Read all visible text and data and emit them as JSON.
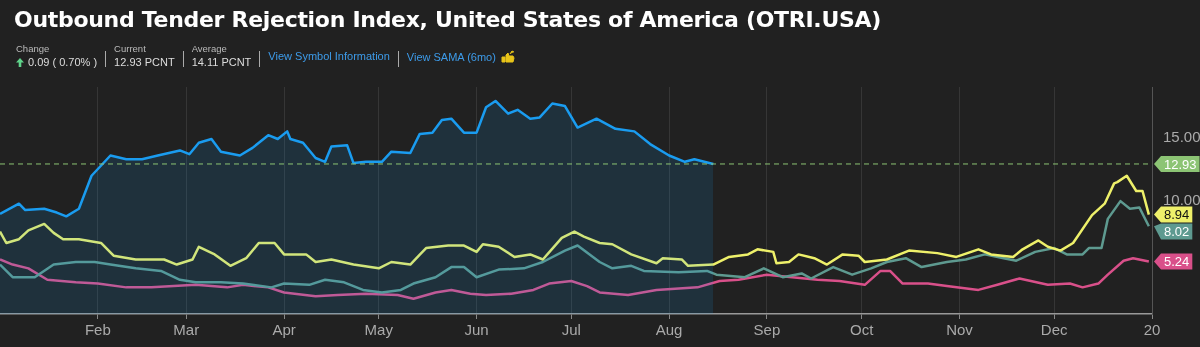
{
  "chart_data": {
    "type": "line",
    "title": "Outbound Tender Rejection Index, United States of America (OTRI.USA)",
    "annotations": [
      "Change",
      "0.09 ( 0.70% )",
      "Current",
      "12.93 PCNT",
      "Average",
      "14.11 PCNT",
      "View Symbol Information",
      "View SAMA (6mo)",
      {
        "text": "8.94",
        "x": "2019-12-31",
        "y": 8.94
      },
      {
        "text": "8.02",
        "x": "2019-12-31",
        "y": 8.02
      },
      {
        "text": "5.24",
        "x": "2019-12-31",
        "y": 5.24
      }
    ],
    "xlim": [
      "2019-01-01",
      "2020-01-01"
    ],
    "xticks": [
      {
        "value": "2019-02-01",
        "label": "Feb"
      },
      {
        "value": "2019-03-01",
        "label": "Mar"
      },
      {
        "value": "2019-04-01",
        "label": "Apr"
      },
      {
        "value": "2019-05-01",
        "label": "May"
      },
      {
        "value": "2019-06-01",
        "label": "Jun"
      },
      {
        "value": "2019-07-01",
        "label": "Jul"
      },
      {
        "value": "2019-08-01",
        "label": "Aug"
      },
      {
        "value": "2019-09-01",
        "label": "Sep"
      },
      {
        "value": "2019-10-01",
        "label": "Oct"
      },
      {
        "value": "2019-11-01",
        "label": "Nov"
      },
      {
        "value": "2019-12-01",
        "label": "Dec"
      },
      {
        "value": "2020-01-01",
        "label": "20"
      }
    ],
    "ylim": [
      1.1,
      19
    ],
    "yticks": [
      {
        "value": 10,
        "label": "10.00"
      },
      {
        "value": 15,
        "label": "15.00"
      }
    ],
    "grid": "x",
    "ref_lines": [
      {
        "axis": "y",
        "value": 12.93,
        "label": "12.93",
        "color": "#8cc474",
        "line_style": "dashed"
      }
    ],
    "series": [
      {
        "type": "area",
        "color": "#1a9cf0",
        "x": [
          "2019-01-01",
          "2019-01-07",
          "2019-01-09",
          "2019-01-15",
          "2019-01-19",
          "2019-01-22",
          "2019-01-26",
          "2019-01-30",
          "2019-02-05",
          "2019-02-10",
          "2019-02-15",
          "2019-02-20",
          "2019-02-27",
          "2019-03-02",
          "2019-03-05",
          "2019-03-09",
          "2019-03-12",
          "2019-03-18",
          "2019-03-22",
          "2019-03-27",
          "2019-03-30",
          "2019-04-02",
          "2019-04-03",
          "2019-04-07",
          "2019-04-11",
          "2019-04-14",
          "2019-04-16",
          "2019-04-21",
          "2019-04-23",
          "2019-04-27",
          "2019-05-02",
          "2019-05-05",
          "2019-05-11",
          "2019-05-14",
          "2019-05-18",
          "2019-05-21",
          "2019-05-24",
          "2019-05-28",
          "2019-06-01",
          "2019-06-04",
          "2019-06-07",
          "2019-06-11",
          "2019-06-14",
          "2019-06-18",
          "2019-06-21",
          "2019-06-25",
          "2019-06-29",
          "2019-07-03",
          "2019-07-09",
          "2019-07-15",
          "2019-07-21",
          "2019-07-26",
          "2019-08-01",
          "2019-08-06",
          "2019-08-09",
          "2019-08-15"
        ],
        "values": [
          9.0,
          9.8,
          9.3,
          9.4,
          9.1,
          8.8,
          9.4,
          12.0,
          13.6,
          13.3,
          13.3,
          13.6,
          14.0,
          13.7,
          14.6,
          14.9,
          13.9,
          13.6,
          14.2,
          15.2,
          14.9,
          15.5,
          14.9,
          14.6,
          13.4,
          13.1,
          14.3,
          14.4,
          13.0,
          13.1,
          13.1,
          13.9,
          13.8,
          15.3,
          15.4,
          16.4,
          16.5,
          15.4,
          15.4,
          17.4,
          17.9,
          16.9,
          17.2,
          16.5,
          16.6,
          17.7,
          17.5,
          15.8,
          16.5,
          15.7,
          15.5,
          14.5,
          13.6,
          13.1,
          13.3,
          12.93
        ]
      },
      {
        "color": "#eef06a",
        "x": [
          "2019-01-01",
          "2019-01-03",
          "2019-01-07",
          "2019-01-10",
          "2019-01-15",
          "2019-01-18",
          "2019-01-21",
          "2019-01-26",
          "2019-02-02",
          "2019-02-06",
          "2019-02-13",
          "2019-02-22",
          "2019-02-26",
          "2019-03-03",
          "2019-03-05",
          "2019-03-10",
          "2019-03-15",
          "2019-03-20",
          "2019-03-24",
          "2019-03-29",
          "2019-04-01",
          "2019-04-08",
          "2019-04-11",
          "2019-04-16",
          "2019-04-23",
          "2019-05-01",
          "2019-05-05",
          "2019-05-11",
          "2019-05-16",
          "2019-05-23",
          "2019-05-28",
          "2019-06-01",
          "2019-06-03",
          "2019-06-08",
          "2019-06-13",
          "2019-06-18",
          "2019-06-22",
          "2019-06-28",
          "2019-07-02",
          "2019-07-05",
          "2019-07-10",
          "2019-07-14",
          "2019-07-20",
          "2019-07-28",
          "2019-07-30",
          "2019-08-05",
          "2019-08-07",
          "2019-08-15",
          "2019-08-20",
          "2019-08-26",
          "2019-08-29",
          "2019-09-03",
          "2019-09-04",
          "2019-09-08",
          "2019-09-11",
          "2019-09-16",
          "2019-09-20",
          "2019-09-25",
          "2019-09-30",
          "2019-10-02",
          "2019-10-09",
          "2019-10-16",
          "2019-10-25",
          "2019-10-31",
          "2019-11-07",
          "2019-11-11",
          "2019-11-18",
          "2019-11-21",
          "2019-11-26",
          "2019-11-29",
          "2019-12-03",
          "2019-12-07",
          "2019-12-13",
          "2019-12-17",
          "2019-12-20",
          "2019-12-21",
          "2019-12-24",
          "2019-12-27",
          "2019-12-29",
          "2019-12-31"
        ],
        "values": [
          7.6,
          6.7,
          7.0,
          7.7,
          8.2,
          7.5,
          7.0,
          7.0,
          6.7,
          5.7,
          5.4,
          5.4,
          5.0,
          5.4,
          6.4,
          5.8,
          4.9,
          5.5,
          6.7,
          6.7,
          5.8,
          5.8,
          5.2,
          5.4,
          5.0,
          4.7,
          5.2,
          5.0,
          6.3,
          6.5,
          6.5,
          6.0,
          6.6,
          6.4,
          5.6,
          5.8,
          5.4,
          7.1,
          7.6,
          7.2,
          6.7,
          6.6,
          5.8,
          5.1,
          5.5,
          5.4,
          4.9,
          5.0,
          5.6,
          5.8,
          6.2,
          6.0,
          5.1,
          5.2,
          5.8,
          5.5,
          5.0,
          5.8,
          5.7,
          5.2,
          5.4,
          6.1,
          5.9,
          5.6,
          6.2,
          5.8,
          5.6,
          6.2,
          6.9,
          6.4,
          6.1,
          6.7,
          8.9,
          9.8,
          11.4,
          11.5,
          12.0,
          10.8,
          10.8,
          8.94
        ]
      },
      {
        "color": "#5e9a90",
        "x": [
          "2019-01-01",
          "2019-01-05",
          "2019-01-12",
          "2019-01-18",
          "2019-01-25",
          "2019-01-31",
          "2019-02-05",
          "2019-02-13",
          "2019-02-21",
          "2019-02-27",
          "2019-03-04",
          "2019-03-12",
          "2019-03-19",
          "2019-03-28",
          "2019-04-01",
          "2019-04-09",
          "2019-04-14",
          "2019-04-20",
          "2019-04-26",
          "2019-05-02",
          "2019-05-08",
          "2019-05-12",
          "2019-05-19",
          "2019-05-24",
          "2019-05-28",
          "2019-06-01",
          "2019-06-08",
          "2019-06-16",
          "2019-06-22",
          "2019-06-29",
          "2019-07-03",
          "2019-07-10",
          "2019-07-14",
          "2019-07-20",
          "2019-07-24",
          "2019-08-04",
          "2019-08-13",
          "2019-08-16",
          "2019-08-25",
          "2019-08-31",
          "2019-09-06",
          "2019-09-12",
          "2019-09-15",
          "2019-09-22",
          "2019-09-28",
          "2019-10-04",
          "2019-10-09",
          "2019-10-15",
          "2019-10-20",
          "2019-10-28",
          "2019-11-03",
          "2019-11-09",
          "2019-11-15",
          "2019-11-19",
          "2019-11-25",
          "2019-12-01",
          "2019-12-05",
          "2019-12-10",
          "2019-12-12",
          "2019-12-16",
          "2019-12-18",
          "2019-12-22",
          "2019-12-25",
          "2019-12-28",
          "2019-12-31"
        ],
        "values": [
          5.0,
          4.0,
          4.0,
          5.0,
          5.2,
          5.2,
          5.0,
          4.7,
          4.5,
          3.8,
          3.6,
          3.6,
          3.5,
          3.2,
          3.5,
          3.4,
          3.8,
          3.6,
          3.0,
          2.8,
          3.0,
          3.5,
          4.0,
          4.8,
          4.8,
          4.0,
          4.6,
          4.7,
          5.2,
          6.1,
          6.5,
          5.2,
          4.7,
          4.9,
          4.5,
          4.4,
          4.5,
          4.2,
          4.0,
          4.7,
          4.0,
          4.3,
          3.9,
          4.8,
          4.2,
          4.7,
          5.2,
          5.5,
          4.8,
          5.2,
          5.4,
          5.8,
          5.5,
          5.3,
          6.0,
          6.3,
          5.8,
          5.8,
          6.3,
          6.3,
          8.6,
          10.0,
          9.4,
          9.5,
          8.02
        ]
      },
      {
        "color": "#d9508a",
        "x": [
          "2019-01-01",
          "2019-01-05",
          "2019-01-10",
          "2019-01-16",
          "2019-01-25",
          "2019-02-01",
          "2019-02-10",
          "2019-02-18",
          "2019-02-25",
          "2019-03-04",
          "2019-03-14",
          "2019-03-19",
          "2019-03-27",
          "2019-04-01",
          "2019-04-11",
          "2019-04-18",
          "2019-04-27",
          "2019-05-07",
          "2019-05-12",
          "2019-05-19",
          "2019-05-24",
          "2019-05-30",
          "2019-06-04",
          "2019-06-12",
          "2019-06-19",
          "2019-06-24",
          "2019-07-01",
          "2019-07-06",
          "2019-07-10",
          "2019-07-19",
          "2019-07-28",
          "2019-08-10",
          "2019-08-17",
          "2019-08-23",
          "2019-09-01",
          "2019-09-09",
          "2019-09-17",
          "2019-09-24",
          "2019-10-02",
          "2019-10-07",
          "2019-10-10",
          "2019-10-14",
          "2019-10-22",
          "2019-10-28",
          "2019-11-07",
          "2019-11-13",
          "2019-11-20",
          "2019-11-29",
          "2019-12-06",
          "2019-12-10",
          "2019-12-15",
          "2019-12-18",
          "2019-12-23",
          "2019-12-26",
          "2019-12-31"
        ],
        "values": [
          5.4,
          5.0,
          4.7,
          3.8,
          3.6,
          3.5,
          3.2,
          3.2,
          3.3,
          3.4,
          3.2,
          3.4,
          3.2,
          2.8,
          2.5,
          2.6,
          2.7,
          2.6,
          2.3,
          2.8,
          3.0,
          2.7,
          2.6,
          2.7,
          3.0,
          3.5,
          3.7,
          3.3,
          2.8,
          2.6,
          3.0,
          3.2,
          3.7,
          3.8,
          4.2,
          4.0,
          3.8,
          3.7,
          3.4,
          4.5,
          4.5,
          3.5,
          3.5,
          3.3,
          3.0,
          3.4,
          3.9,
          3.4,
          3.5,
          3.2,
          3.5,
          4.2,
          5.3,
          5.5,
          5.24
        ]
      }
    ]
  }
}
